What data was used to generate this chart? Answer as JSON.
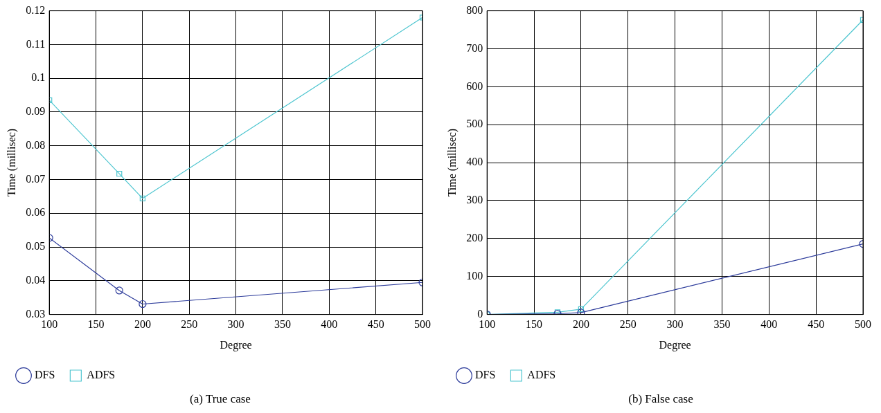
{
  "chart_data": [
    {
      "type": "line",
      "xlabel": "Degree",
      "ylabel": "Time (millisec)",
      "annotations": [
        "(a)  True case"
      ],
      "xlim": [
        100,
        500
      ],
      "xticks": [
        100,
        150,
        200,
        250,
        300,
        350,
        400,
        450,
        500
      ],
      "ylim": [
        0.03,
        0.12
      ],
      "yticks": [
        0.03,
        0.04,
        0.05,
        0.06,
        0.07,
        0.08,
        0.09,
        0.1,
        0.11,
        0.12
      ],
      "grid": true,
      "legend": "bottom left",
      "line_style": "solid",
      "series": [
        {
          "name": "DFS",
          "color": "#2b3a9a",
          "marker": "circle",
          "x": [
            100,
            175,
            200,
            500
          ],
          "values": [
            0.0527,
            0.0371,
            0.0331,
            0.0395
          ]
        },
        {
          "name": "ADFS",
          "color": "#4fc6d0",
          "marker": "square",
          "x": [
            100,
            175,
            200,
            500
          ],
          "values": [
            0.0935,
            0.0717,
            0.0644,
            0.118
          ]
        }
      ]
    },
    {
      "type": "line",
      "xlabel": "Degree",
      "ylabel": "Time (millisec)",
      "annotations": [
        "(b)  False case"
      ],
      "xlim": [
        100,
        500
      ],
      "xticks": [
        100,
        150,
        200,
        250,
        300,
        350,
        400,
        450,
        500
      ],
      "ylim": [
        0,
        800
      ],
      "yticks": [
        0,
        100,
        200,
        300,
        400,
        500,
        600,
        700,
        800
      ],
      "grid": true,
      "legend": "bottom left",
      "line_style": "solid",
      "series": [
        {
          "name": "DFS",
          "color": "#2b3a9a",
          "marker": "circle",
          "x": [
            100,
            175,
            200,
            500
          ],
          "values": [
            0,
            2,
            5,
            186
          ]
        },
        {
          "name": "ADFS",
          "color": "#4fc6d0",
          "marker": "square",
          "x": [
            100,
            175,
            200,
            500
          ],
          "values": [
            0,
            6,
            14,
            776
          ]
        }
      ]
    }
  ]
}
